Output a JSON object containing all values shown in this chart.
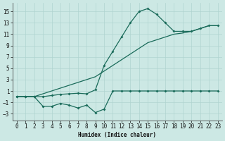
{
  "xlabel": "Humidex (Indice chaleur)",
  "xlim": [
    -0.5,
    23.5
  ],
  "ylim": [
    -4.2,
    16.5
  ],
  "xticks": [
    0,
    1,
    2,
    3,
    4,
    5,
    6,
    7,
    8,
    9,
    10,
    11,
    12,
    13,
    14,
    15,
    16,
    17,
    18,
    19,
    20,
    21,
    22,
    23
  ],
  "yticks": [
    -3,
    -1,
    1,
    3,
    5,
    7,
    9,
    11,
    13,
    15
  ],
  "bg_color": "#cce8e4",
  "grid_color": "#b0d4d0",
  "line_color": "#1a6b5a",
  "s1_x": [
    0,
    1,
    2,
    3,
    4,
    5,
    6,
    7,
    8,
    9,
    10,
    11,
    12,
    13,
    14,
    15,
    16,
    17,
    18,
    19,
    20,
    21,
    22,
    23
  ],
  "s1_y": [
    0.0,
    0.0,
    0.0,
    0.0,
    0.2,
    0.4,
    0.5,
    0.6,
    0.5,
    1.2,
    5.5,
    8.0,
    10.5,
    13.0,
    15.0,
    15.5,
    14.5,
    13.0,
    11.5,
    11.5,
    11.5,
    12.0,
    12.5,
    12.5
  ],
  "s2_x": [
    0,
    1,
    2,
    3,
    4,
    5,
    6,
    7,
    8,
    9,
    10,
    11,
    12,
    13,
    14,
    15,
    16,
    17,
    18,
    19,
    20,
    21,
    22,
    23
  ],
  "s2_y": [
    0.0,
    0.0,
    0.0,
    0.5,
    1.0,
    1.5,
    2.0,
    2.5,
    3.0,
    3.5,
    4.5,
    5.5,
    6.5,
    7.5,
    8.5,
    9.5,
    10.0,
    10.5,
    11.0,
    11.2,
    11.5,
    12.0,
    12.5,
    12.5
  ],
  "s3_x": [
    0,
    1,
    2,
    3,
    4,
    5,
    6,
    7,
    8,
    9,
    10,
    11,
    12,
    13,
    14,
    15,
    16,
    17,
    18,
    19,
    20,
    21,
    22,
    23
  ],
  "s3_y": [
    0.0,
    0.0,
    0.0,
    -1.7,
    -1.7,
    -1.2,
    -1.5,
    -2.0,
    -1.5,
    -2.8,
    -2.2,
    1.0,
    1.0,
    1.0,
    1.0,
    1.0,
    1.0,
    1.0,
    1.0,
    1.0,
    1.0,
    1.0,
    1.0,
    1.0
  ]
}
